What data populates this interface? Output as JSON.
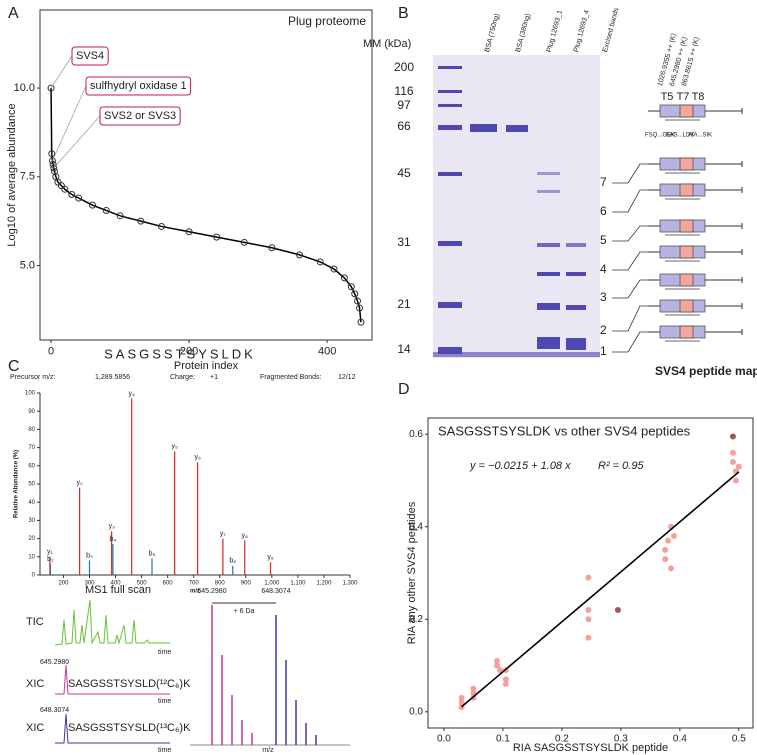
{
  "panel_labels": [
    "A",
    "B",
    "C",
    "D"
  ],
  "chart_data": [
    {
      "type": "line",
      "title": "Plug proteome",
      "xlabel": "Protein index",
      "ylabel": "Log10 of average abundance",
      "x": [
        0,
        1,
        2,
        3,
        4,
        5,
        7,
        10,
        15,
        20,
        30,
        40,
        60,
        80,
        100,
        130,
        160,
        200,
        240,
        280,
        320,
        360,
        390,
        410,
        425,
        435,
        440,
        444,
        447,
        449
      ],
      "values": [
        10.0,
        8.15,
        7.95,
        7.85,
        7.75,
        7.65,
        7.5,
        7.35,
        7.25,
        7.15,
        7.0,
        6.9,
        6.7,
        6.55,
        6.4,
        6.25,
        6.1,
        5.95,
        5.8,
        5.65,
        5.5,
        5.3,
        5.1,
        4.9,
        4.65,
        4.4,
        4.2,
        4.0,
        3.8,
        3.4
      ],
      "color": "#000000",
      "xlim": [
        -16,
        465
      ],
      "ylim": [
        2.9,
        12.2
      ],
      "xticks": [
        0,
        200,
        400
      ],
      "yticks": [
        {
          "value": 5,
          "label": "5.0"
        },
        {
          "value": 7.5,
          "label": "7.5"
        },
        {
          "value": 10,
          "label": "10.0"
        }
      ],
      "annotations": [
        {
          "text": "SVS4",
          "x": 0,
          "y": 10.0
        },
        {
          "text": "sulfhydryl oxidase 1",
          "x": 2,
          "y": 7.95
        },
        {
          "text": "SVS2 or SVS3",
          "x": 4,
          "y": 7.75
        }
      ]
    },
    {
      "type": "stem",
      "sequence": "SASGSSTSYSLDK",
      "precursor_label": "Precursor m/z:",
      "precursor": "1,289.5856",
      "charge_label": "Charge:",
      "charge": "+1",
      "bonds_label": "Fragmented Bonds:",
      "bonds": "12/12",
      "xlabel": "m/z",
      "ylabel": "Relative Abundance (%)",
      "xlim": [
        110,
        1300
      ],
      "ylim": [
        0,
        100
      ],
      "xticks": [
        200,
        300,
        400,
        500,
        600,
        700,
        800,
        900,
        {
          "value": 1000,
          "label": "1,000"
        },
        {
          "value": 1100,
          "label": "1,100"
        },
        {
          "value": 1200,
          "label": "1,200"
        },
        {
          "value": 1300,
          "label": "1,300"
        }
      ],
      "yticks": [
        0,
        10,
        20,
        30,
        40,
        50,
        60,
        70,
        80,
        90,
        100
      ],
      "series": [
        {
          "color": "#d62728",
          "x": [
            148,
            262,
            385,
            462,
            627,
            715,
            812,
            896,
            995
          ],
          "values": [
            10,
            48,
            24,
            97,
            68,
            62,
            20,
            19,
            7
          ],
          "labels": [
            "y₁",
            "y₂",
            "y₃",
            "y₄",
            "y₅",
            "y₆",
            "y₇",
            "y₈",
            "y₉"
          ]
        },
        {
          "color": "#1f77b4",
          "x": [
            150,
            300,
            390,
            540,
            850
          ],
          "values": [
            6,
            8,
            17,
            9,
            5
          ],
          "labels": [
            "b₂",
            "b₃",
            "b₄",
            "b₅",
            "b₈"
          ]
        }
      ]
    },
    {
      "type": "scatter",
      "title": "SASGSSTSYSLDK vs other SVS4 peptides",
      "xlabel": "RIA SASGSSTSYSLDK peptide",
      "ylabel": "RIA any other SVS4 peptides",
      "equation": "y = −0.0215 + 1.08 x",
      "r_squared": "R² = 0.95",
      "fit": {
        "intercept": -0.0215,
        "slope": 1.08
      },
      "xlim": [
        -0.027,
        0.524
      ],
      "ylim": [
        -0.035,
        0.635
      ],
      "xticks": [
        {
          "value": 0,
          "label": "0.0"
        },
        0.1,
        0.2,
        0.3,
        0.4,
        0.5
      ],
      "yticks": [
        {
          "value": 0,
          "label": "0.0"
        },
        0.2,
        0.4,
        0.6
      ],
      "series": [
        {
          "color": "#f08a84",
          "x": [
            0.03,
            0.03,
            0.03,
            0.05,
            0.05,
            0.05,
            0.09,
            0.09,
            0.095,
            0.105,
            0.105,
            0.105,
            0.245,
            0.245,
            0.245,
            0.245,
            0.375,
            0.375,
            0.38,
            0.385,
            0.385,
            0.39,
            0.49,
            0.49,
            0.495,
            0.495,
            0.5
          ],
          "values": [
            0.02,
            0.03,
            0.01,
            0.03,
            0.05,
            0.04,
            0.1,
            0.11,
            0.09,
            0.07,
            0.09,
            0.06,
            0.29,
            0.16,
            0.22,
            0.2,
            0.35,
            0.33,
            0.37,
            0.4,
            0.31,
            0.38,
            0.56,
            0.54,
            0.52,
            0.5,
            0.53
          ]
        },
        {
          "color": "#8b2a2a",
          "x": [
            0.295,
            0.49
          ],
          "values": [
            0.22,
            0.595
          ]
        }
      ]
    }
  ],
  "gel": {
    "mm_title": "MM (kDa)",
    "mm_markers": [
      200,
      116,
      97,
      66,
      45,
      31,
      21,
      14
    ],
    "lanes": [
      "BSA (750ng)",
      "BSA (380ng)",
      "Plug 12693_1",
      "Plug 12693_4",
      "Excised bands"
    ],
    "band_numbers": [
      1,
      2,
      3,
      4,
      5,
      6,
      7
    ],
    "peptide_masses": [
      "1026.9355 ++ (K)",
      "645.2980 ++ (K)",
      "863.8615 ++ (K)"
    ],
    "tryptic_peptides": [
      "T5",
      "T7",
      "T8"
    ],
    "peptide_sequences": [
      "FSQ...GEK",
      "SAS...LDK",
      "AIA...SIK"
    ],
    "map_title": "SVS4 peptide map"
  },
  "ms1": {
    "title": "MS1 full scan",
    "tic": "TIC",
    "xic": "XIC",
    "time": "time",
    "light_mz": "645.2980",
    "heavy_mz": "648.3074",
    "light_peptide": "SASGSSTSYSLD(¹²C₆)K",
    "heavy_peptide": "SASGSSTSYSLD(¹³C₆)K",
    "shift": "+ 6 Da",
    "xlabel": "m/z"
  }
}
